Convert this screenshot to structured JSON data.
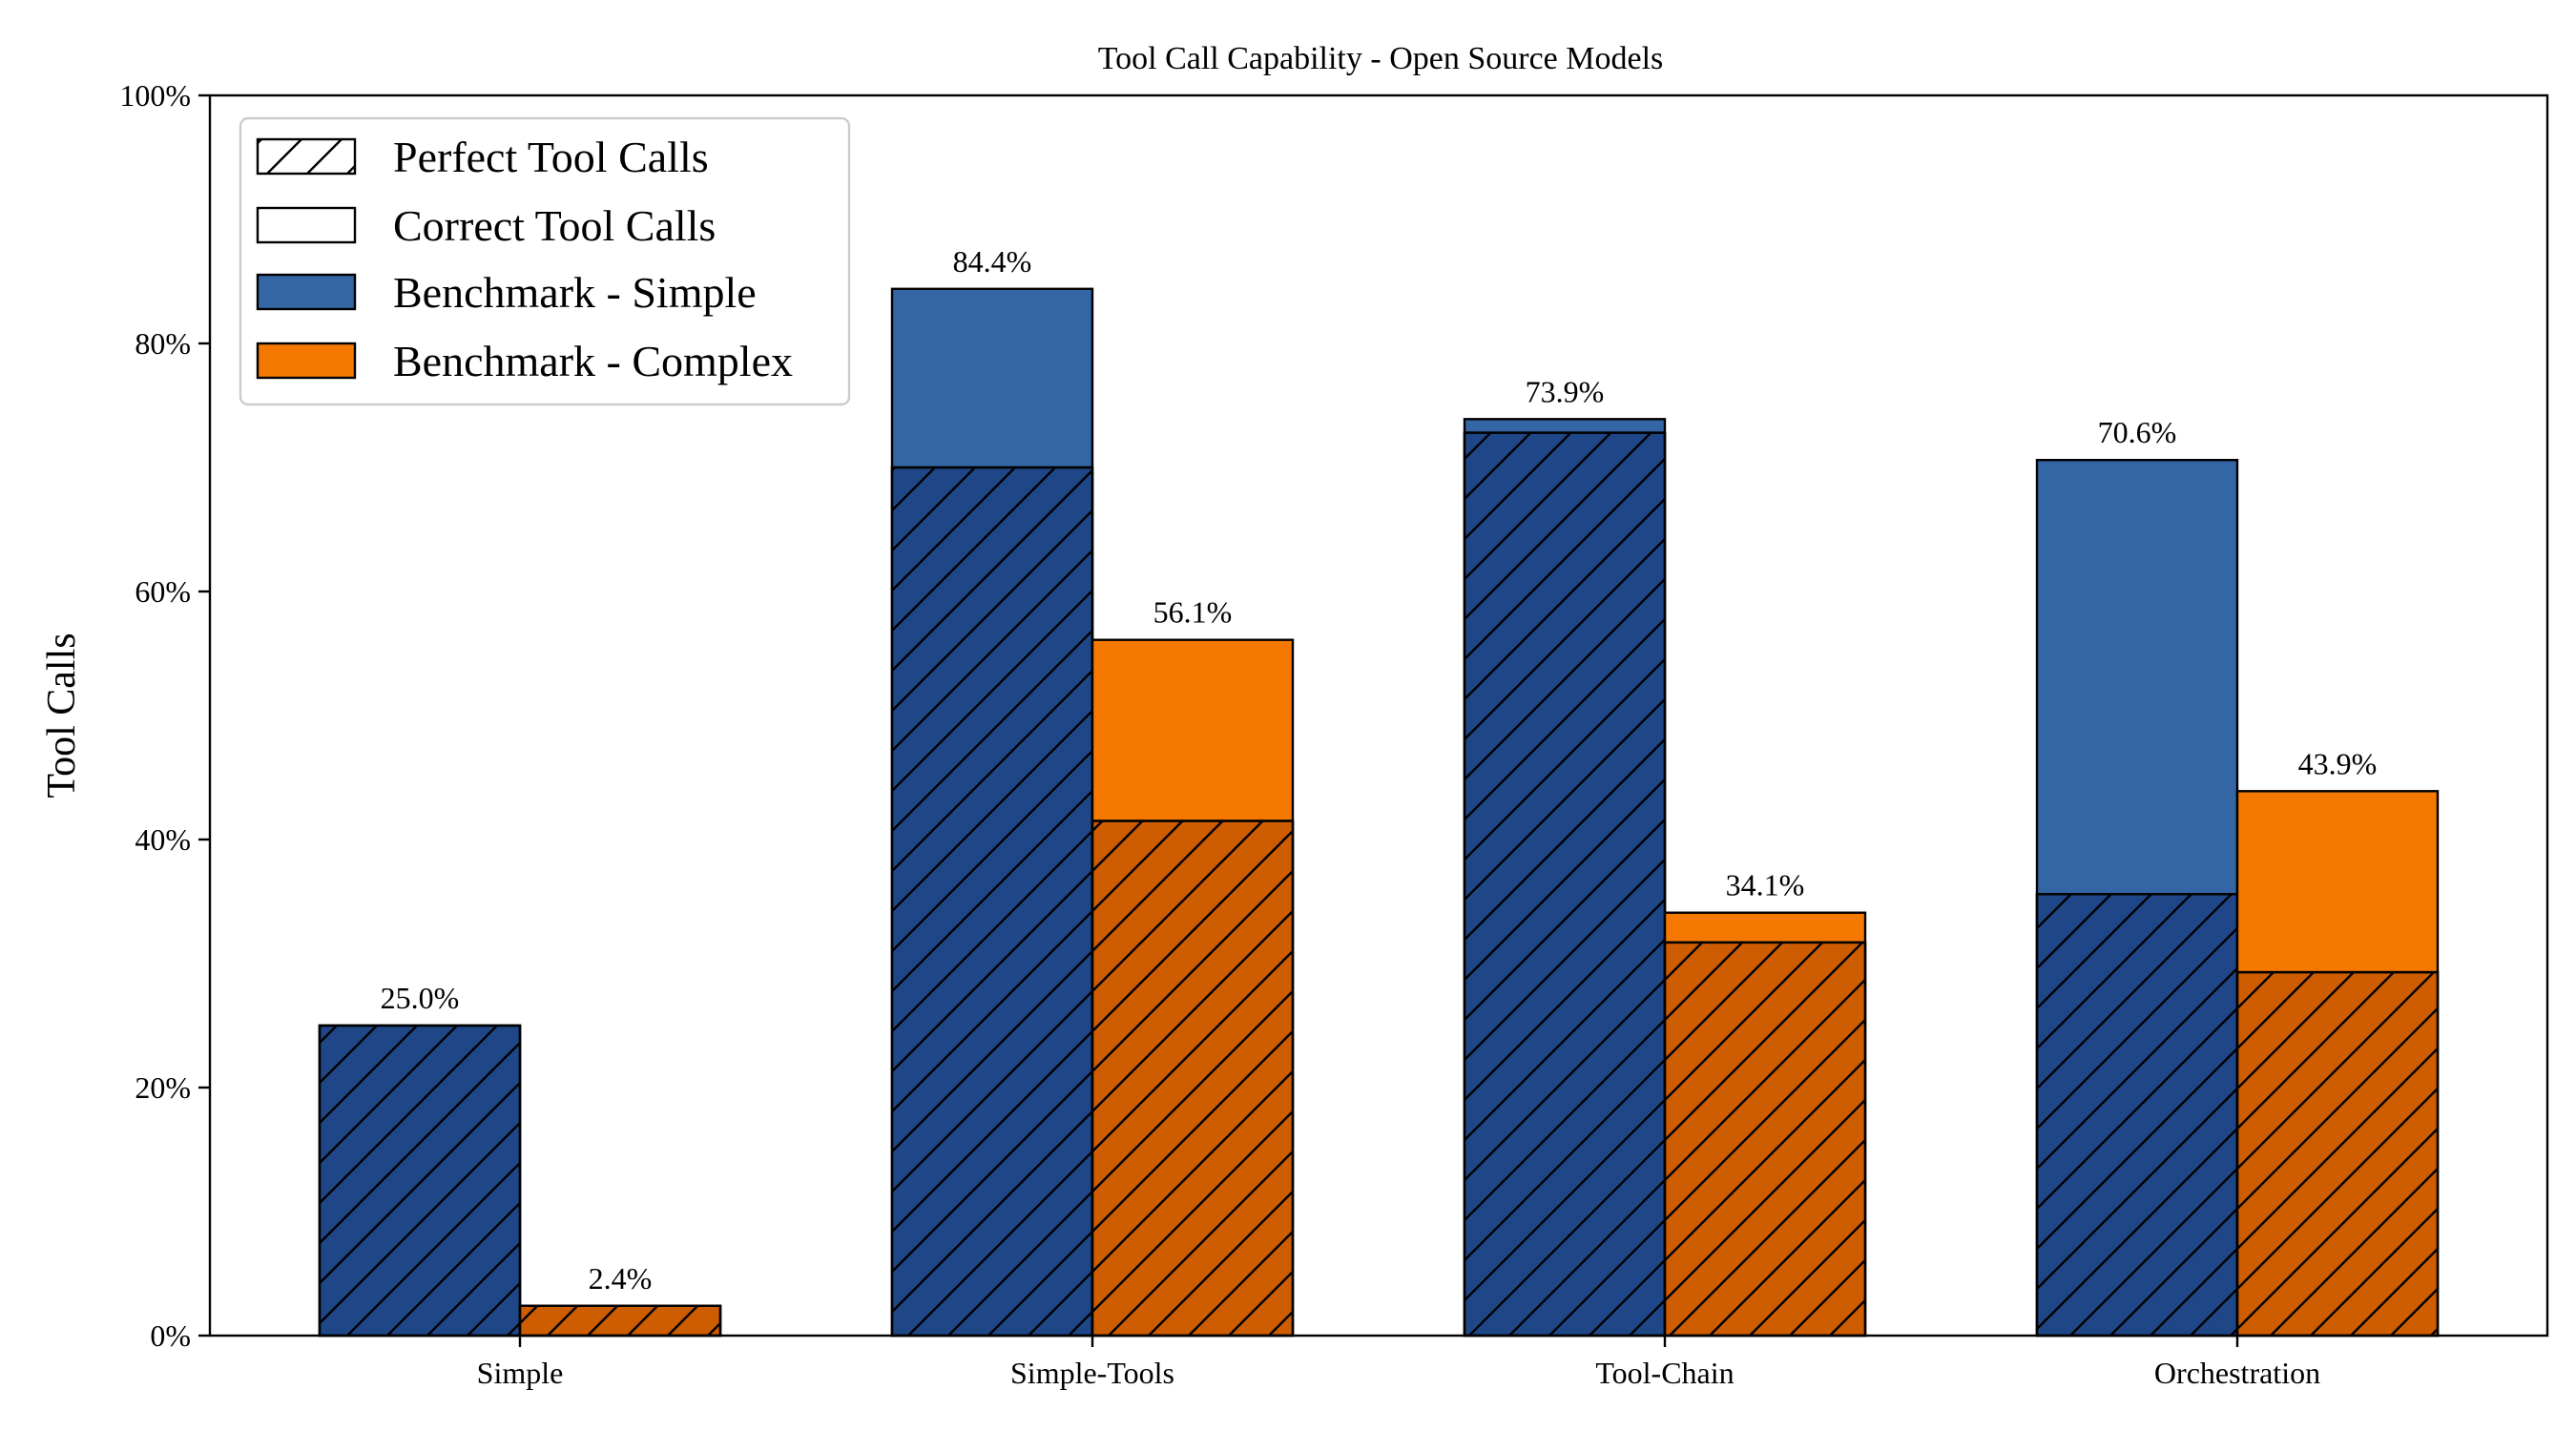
{
  "chart_data": {
    "type": "bar",
    "title": "Tool Call Capability - Open Source Models",
    "xlabel": "",
    "ylabel": "Tool Calls",
    "ylim": [
      0,
      100
    ],
    "yticks": [
      0,
      20,
      40,
      60,
      80,
      100
    ],
    "ytick_labels": [
      "0%",
      "20%",
      "40%",
      "60%",
      "80%",
      "100%"
    ],
    "categories": [
      "Simple",
      "Simple-Tools",
      "Tool-Chain",
      "Orchestration"
    ],
    "series": [
      {
        "name": "Benchmark - Simple",
        "color": "#3465a4",
        "perfect_color": "#1f4788",
        "correct": [
          25.0,
          84.4,
          73.9,
          70.6
        ],
        "perfect": [
          25.0,
          70.0,
          72.8,
          35.6
        ],
        "labels": [
          "25.0%",
          "84.4%",
          "73.9%",
          "70.6%"
        ]
      },
      {
        "name": "Benchmark - Complex",
        "color": "#f57900",
        "perfect_color": "#ce5c00",
        "correct": [
          2.4,
          56.1,
          34.1,
          43.9
        ],
        "perfect": [
          2.4,
          41.5,
          31.7,
          29.3
        ],
        "labels": [
          "2.4%",
          "56.1%",
          "34.1%",
          "43.9%"
        ]
      }
    ],
    "legend": {
      "position": "top-left",
      "entries": [
        "Perfect Tool Calls",
        "Correct Tool Calls",
        "Benchmark - Simple",
        "Benchmark - Complex"
      ]
    },
    "grid": false
  }
}
